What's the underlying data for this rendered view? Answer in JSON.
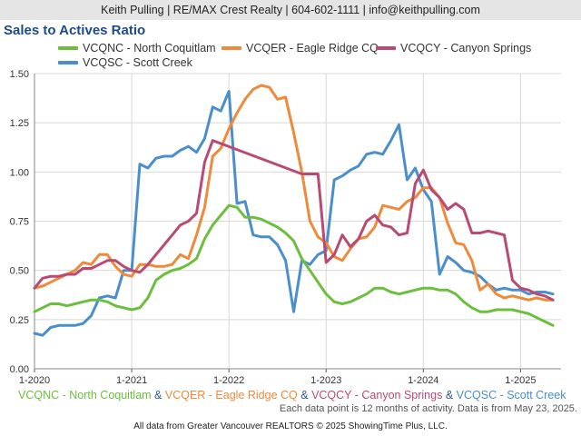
{
  "header": {
    "banner": "Keith Pulling | RE/MAX Crest Realty | 604-602-1111 | info@keithpulling.com"
  },
  "colors": {
    "VCQNC": "#6cbf3c",
    "VCQER": "#ee8a3a",
    "VCQCY": "#b94a74",
    "VCQSC": "#4a8fcc",
    "title": "#1c4a8a"
  },
  "footer": {
    "legend_parts": [
      {
        "text": "VCQNC - North Coquitlam",
        "color": "#6cbf3c"
      },
      {
        "text": " & ",
        "color": "#2a5a9a"
      },
      {
        "text": "VCQER - Eagle Ridge CQ",
        "color": "#ee8a3a"
      },
      {
        "text": " & ",
        "color": "#2a5a9a"
      },
      {
        "text": "VCQCY - Canyon Springs",
        "color": "#b94a74"
      },
      {
        "text": " & ",
        "color": "#2a5a9a"
      },
      {
        "text": "VCQSC - Scott Creek",
        "color": "#4a8fcc"
      }
    ],
    "note": "Each data point is 12 months of activity. Data is from May 23, 2025.",
    "source": "All data from Greater Vancouver REALTORS © 2025 ShowingTime Plus, LLC."
  },
  "chart_data": {
    "type": "line",
    "title": "Sales to Actives Ratio",
    "xlabel": "",
    "ylabel": "",
    "ylim": [
      0,
      1.5
    ],
    "yticks": [
      0.0,
      0.25,
      0.5,
      0.75,
      1.0,
      1.25,
      1.5
    ],
    "ytick_labels": [
      "0.00",
      "0.25",
      "0.50",
      "0.75",
      "1.00",
      "1.25",
      "1.50"
    ],
    "xlim": [
      "2020-01",
      "2025-06"
    ],
    "xticks": [
      "1-2020",
      "1-2021",
      "1-2022",
      "1-2023",
      "1-2024",
      "1-2025"
    ],
    "grid": true,
    "legend_position": "top",
    "series": [
      {
        "name": "VCQNC - North Coquitlam",
        "color": "#6cbf3c",
        "x": [
          "2020-01",
          "2020-02",
          "2020-03",
          "2020-04",
          "2020-05",
          "2020-06",
          "2020-07",
          "2020-08",
          "2020-09",
          "2020-10",
          "2020-11",
          "2020-12",
          "2021-01",
          "2021-02",
          "2021-03",
          "2021-04",
          "2021-05",
          "2021-06",
          "2021-07",
          "2021-08",
          "2021-09",
          "2021-10",
          "2021-11",
          "2021-12",
          "2022-01",
          "2022-02",
          "2022-03",
          "2022-04",
          "2022-05",
          "2022-06",
          "2022-07",
          "2022-08",
          "2022-09",
          "2022-10",
          "2022-11",
          "2022-12",
          "2023-01",
          "2023-02",
          "2023-03",
          "2023-04",
          "2023-05",
          "2023-06",
          "2023-07",
          "2023-08",
          "2023-09",
          "2023-10",
          "2023-11",
          "2023-12",
          "2024-01",
          "2024-02",
          "2024-03",
          "2024-04",
          "2024-05",
          "2024-06",
          "2024-07",
          "2024-08",
          "2024-09",
          "2024-10",
          "2024-11",
          "2024-12",
          "2025-01",
          "2025-02",
          "2025-03",
          "2025-04",
          "2025-05"
        ],
        "y": [
          0.29,
          0.31,
          0.33,
          0.33,
          0.32,
          0.33,
          0.34,
          0.35,
          0.35,
          0.34,
          0.32,
          0.31,
          0.3,
          0.31,
          0.36,
          0.45,
          0.48,
          0.5,
          0.51,
          0.53,
          0.56,
          0.66,
          0.73,
          0.78,
          0.83,
          0.82,
          0.77,
          0.77,
          0.76,
          0.74,
          0.72,
          0.69,
          0.65,
          0.56,
          0.5,
          0.44,
          0.38,
          0.34,
          0.33,
          0.34,
          0.36,
          0.38,
          0.41,
          0.41,
          0.39,
          0.38,
          0.39,
          0.4,
          0.41,
          0.41,
          0.4,
          0.4,
          0.38,
          0.34,
          0.31,
          0.29,
          0.29,
          0.3,
          0.3,
          0.3,
          0.29,
          0.28,
          0.26,
          0.24,
          0.22
        ]
      },
      {
        "name": "VCQER - Eagle Ridge CQ",
        "color": "#ee8a3a",
        "x": [
          "2020-01",
          "2020-02",
          "2020-03",
          "2020-04",
          "2020-05",
          "2020-06",
          "2020-07",
          "2020-08",
          "2020-09",
          "2020-10",
          "2020-11",
          "2020-12",
          "2021-01",
          "2021-02",
          "2021-03",
          "2021-04",
          "2021-05",
          "2021-06",
          "2021-07",
          "2021-08",
          "2021-09",
          "2021-10",
          "2021-11",
          "2021-12",
          "2022-01",
          "2022-02",
          "2022-03",
          "2022-04",
          "2022-05",
          "2022-06",
          "2022-07",
          "2022-08",
          "2022-09",
          "2022-10",
          "2022-11",
          "2022-12",
          "2023-01",
          "2023-02",
          "2023-03",
          "2023-04",
          "2023-05",
          "2023-06",
          "2023-07",
          "2023-08",
          "2023-09",
          "2023-10",
          "2023-11",
          "2023-12",
          "2024-01",
          "2024-02",
          "2024-03",
          "2024-04",
          "2024-05",
          "2024-06",
          "2024-07",
          "2024-08",
          "2024-09",
          "2024-10",
          "2024-11",
          "2024-12",
          "2025-01",
          "2025-02",
          "2025-03",
          "2025-04",
          "2025-05"
        ],
        "y": [
          0.41,
          0.42,
          0.44,
          0.46,
          0.48,
          0.5,
          0.54,
          0.53,
          0.58,
          0.58,
          0.52,
          0.48,
          0.47,
          0.53,
          0.53,
          0.52,
          0.52,
          0.53,
          0.58,
          0.56,
          0.68,
          0.82,
          1.08,
          1.12,
          1.22,
          1.3,
          1.37,
          1.42,
          1.44,
          1.43,
          1.37,
          1.38,
          1.2,
          1.0,
          0.75,
          0.67,
          0.64,
          0.57,
          0.55,
          0.61,
          0.66,
          0.67,
          0.72,
          0.83,
          0.82,
          0.81,
          0.85,
          0.87,
          0.92,
          0.92,
          0.87,
          0.74,
          0.64,
          0.63,
          0.55,
          0.4,
          0.43,
          0.38,
          0.36,
          0.37,
          0.36,
          0.35,
          0.36,
          0.35,
          0.35
        ]
      },
      {
        "name": "VCQCY - Canyon Springs",
        "color": "#b94a74",
        "x": [
          "2020-01",
          "2020-02",
          "2020-03",
          "2020-04",
          "2020-05",
          "2020-06",
          "2020-07",
          "2020-08",
          "2020-09",
          "2020-10",
          "2020-11",
          "2020-12",
          "2021-01",
          "2021-02",
          "2021-03",
          "2021-04",
          "2021-05",
          "2021-06",
          "2021-07",
          "2021-08",
          "2021-09",
          "2021-10",
          "2021-11",
          "2022-10",
          "2022-11",
          "2022-12",
          "2023-01",
          "2023-02",
          "2023-03",
          "2023-04",
          "2023-05",
          "2023-06",
          "2023-07",
          "2023-08",
          "2023-09",
          "2023-10",
          "2023-11",
          "2023-12",
          "2024-01",
          "2024-02",
          "2024-03",
          "2024-04",
          "2024-05",
          "2024-06",
          "2024-07",
          "2024-08",
          "2024-09",
          "2024-10",
          "2024-11",
          "2024-12",
          "2025-01",
          "2025-02",
          "2025-03",
          "2025-04",
          "2025-05"
        ],
        "y": [
          0.41,
          0.46,
          0.47,
          0.47,
          0.48,
          0.48,
          0.51,
          0.51,
          0.53,
          0.55,
          0.55,
          0.52,
          0.5,
          0.49,
          0.53,
          0.58,
          0.63,
          0.68,
          0.73,
          0.75,
          0.79,
          1.05,
          1.16,
          0.99,
          0.99,
          0.99,
          0.54,
          0.58,
          0.68,
          0.62,
          0.66,
          0.75,
          0.78,
          0.73,
          0.72,
          0.68,
          0.69,
          0.94,
          1.01,
          0.91,
          0.87,
          0.81,
          0.84,
          0.81,
          0.69,
          0.69,
          0.7,
          0.69,
          0.68,
          0.45,
          0.41,
          0.4,
          0.38,
          0.37,
          0.35
        ]
      },
      {
        "name": "VCQSC - Scott Creek",
        "color": "#4a8fcc",
        "x": [
          "2020-01",
          "2020-02",
          "2020-03",
          "2020-04",
          "2020-05",
          "2020-06",
          "2020-07",
          "2020-08",
          "2020-09",
          "2020-10",
          "2020-11",
          "2020-12",
          "2021-01",
          "2021-02",
          "2021-03",
          "2021-04",
          "2021-05",
          "2021-06",
          "2021-07",
          "2021-08",
          "2021-09",
          "2021-10",
          "2021-11",
          "2021-12",
          "2022-01",
          "2022-02",
          "2022-03",
          "2022-04",
          "2022-05",
          "2022-06",
          "2022-07",
          "2022-08",
          "2022-09",
          "2022-10",
          "2022-11",
          "2022-12",
          "2023-01",
          "2023-02",
          "2023-03",
          "2023-04",
          "2023-05",
          "2023-06",
          "2023-07",
          "2023-08",
          "2023-09",
          "2023-10",
          "2023-11",
          "2023-12",
          "2024-01",
          "2024-02",
          "2024-03",
          "2024-04",
          "2024-05",
          "2024-06",
          "2024-07",
          "2024-08",
          "2024-09",
          "2024-10",
          "2024-11",
          "2024-12",
          "2025-01",
          "2025-02",
          "2025-03",
          "2025-04",
          "2025-05"
        ],
        "y": [
          0.18,
          0.17,
          0.21,
          0.22,
          0.22,
          0.22,
          0.23,
          0.27,
          0.36,
          0.37,
          0.36,
          0.5,
          0.5,
          1.04,
          1.02,
          1.07,
          1.08,
          1.08,
          1.11,
          1.13,
          1.1,
          1.17,
          1.33,
          1.31,
          1.41,
          0.84,
          0.85,
          0.68,
          0.67,
          0.67,
          0.63,
          0.55,
          0.29,
          0.55,
          0.53,
          0.58,
          0.6,
          0.96,
          0.98,
          1.01,
          1.03,
          1.09,
          1.1,
          1.09,
          1.16,
          1.24,
          0.96,
          1.02,
          0.91,
          0.85,
          0.48,
          0.57,
          0.54,
          0.5,
          0.49,
          0.47,
          0.43,
          0.4,
          0.41,
          0.4,
          0.4,
          0.38,
          0.39,
          0.39,
          0.38
        ]
      }
    ]
  }
}
